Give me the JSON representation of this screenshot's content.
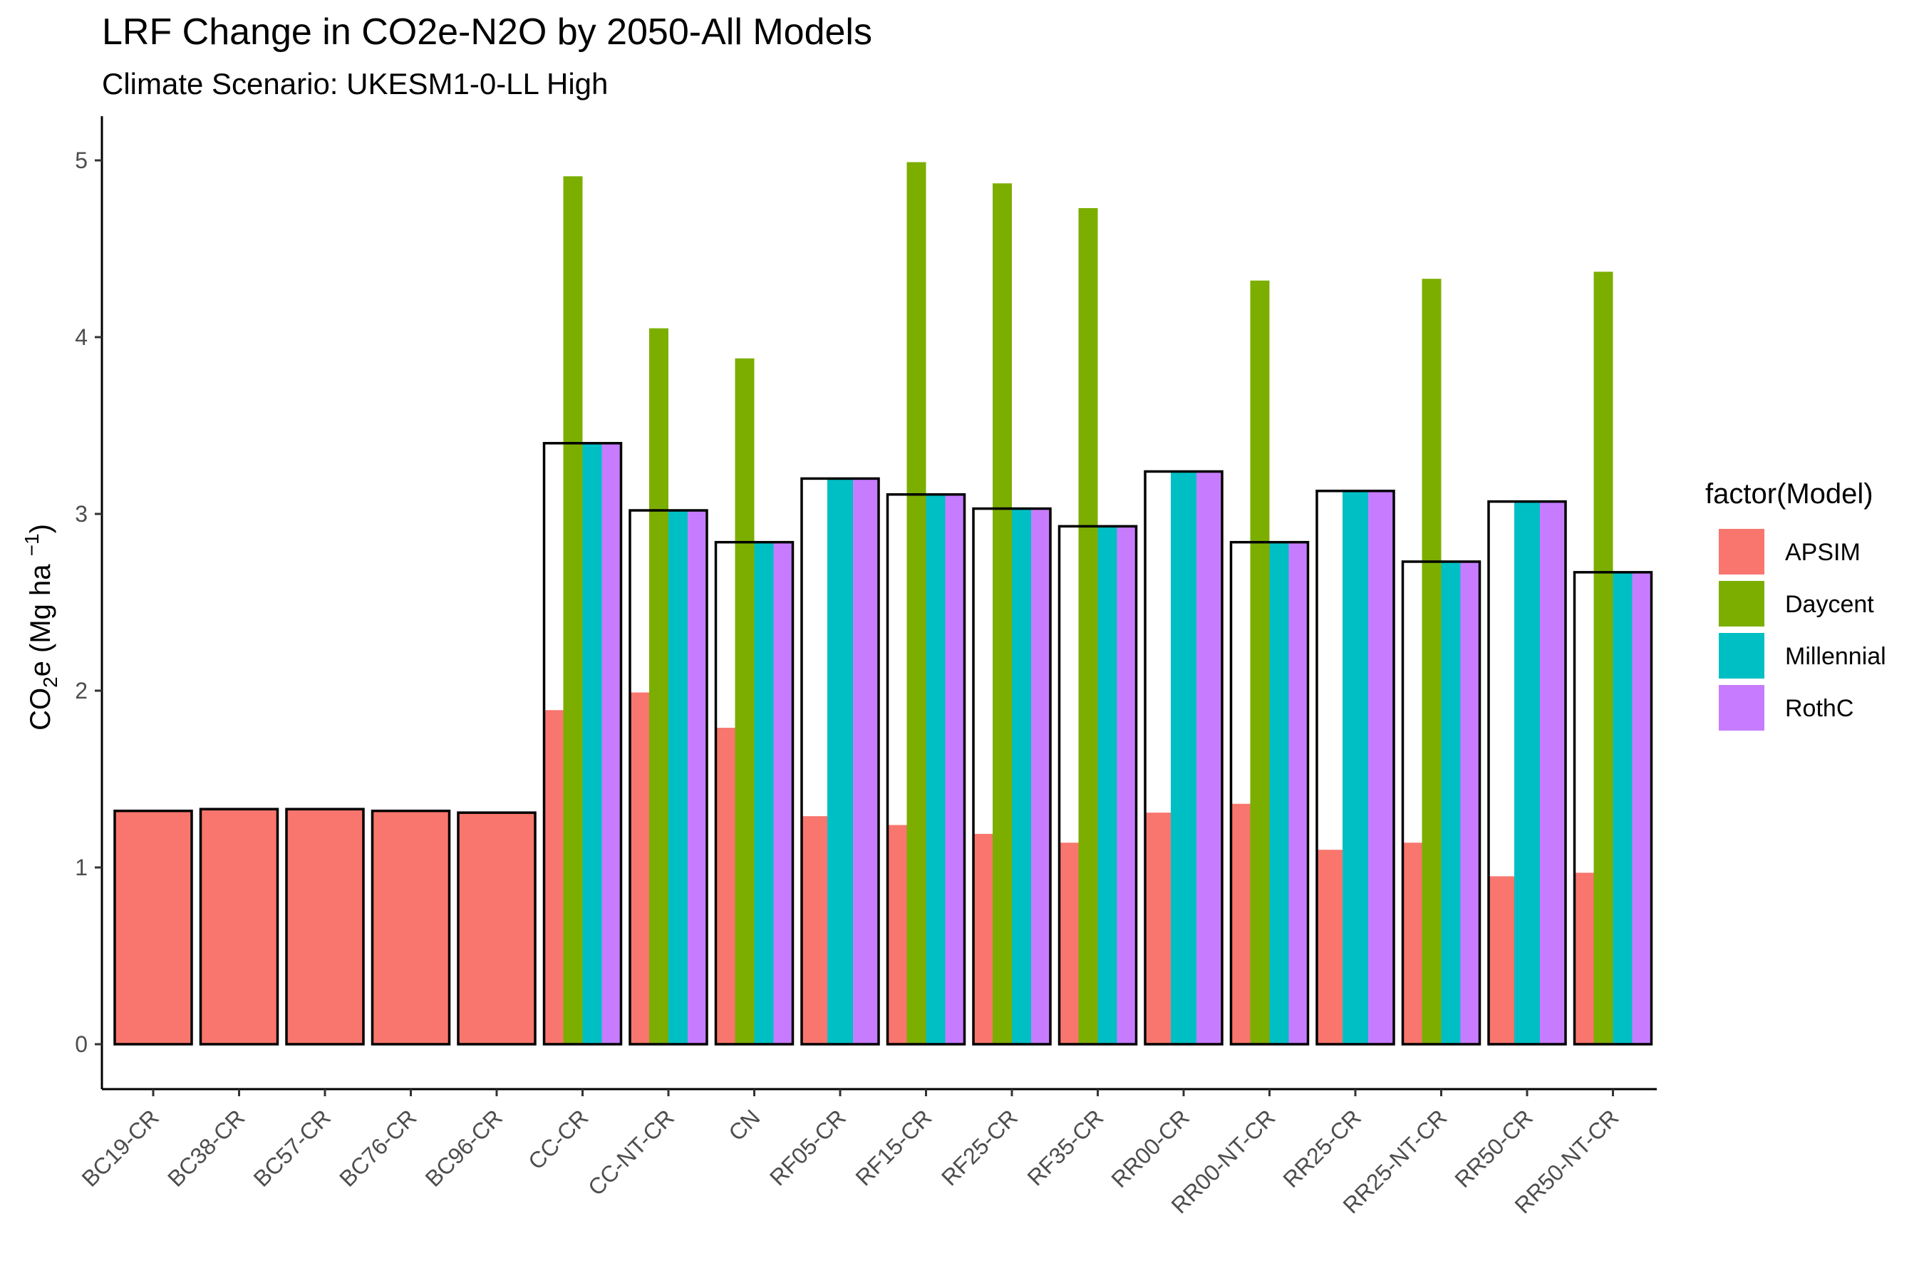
{
  "chart_data": {
    "type": "bar",
    "title": "LRF Change in CO2e-N2O by 2050-All Models",
    "subtitle": "Climate Scenario: UKESM1-0-LL High",
    "ylabel": {
      "base": "CO",
      "sub": "2",
      "mid": "e (Mg ha ",
      "sup": "−1",
      "end": ")"
    },
    "ylim": [
      0,
      5.25
    ],
    "yticks": [
      0,
      1,
      2,
      3,
      4,
      5
    ],
    "grid": false,
    "legend_position": "right",
    "legend_title": "factor(Model)",
    "categories": [
      "BC19-CR",
      "BC38-CR",
      "BC57-CR",
      "BC76-CR",
      "BC96-CR",
      "CC-CR",
      "CC-NT-CR",
      "CN",
      "RF05-CR",
      "RF15-CR",
      "RF25-CR",
      "RF35-CR",
      "RR00-CR",
      "RR00-NT-CR",
      "RR25-CR",
      "RR25-NT-CR",
      "RR50-CR",
      "RR50-NT-CR"
    ],
    "series": [
      {
        "name": "APSIM",
        "color": "#F8766D",
        "values": [
          1.32,
          1.33,
          1.33,
          1.32,
          1.31,
          1.89,
          1.99,
          1.79,
          1.29,
          1.24,
          1.19,
          1.14,
          1.31,
          1.36,
          1.1,
          1.14,
          0.95,
          0.97
        ]
      },
      {
        "name": "Daycent",
        "color": "#7CAE00",
        "values": [
          null,
          null,
          null,
          null,
          null,
          4.91,
          4.05,
          3.88,
          null,
          4.99,
          4.87,
          4.73,
          null,
          4.32,
          null,
          4.33,
          null,
          4.37
        ]
      },
      {
        "name": "Millennial",
        "color": "#00BFC4",
        "values": [
          null,
          null,
          null,
          null,
          null,
          3.4,
          3.02,
          2.84,
          3.2,
          3.11,
          3.03,
          2.93,
          3.24,
          2.84,
          3.13,
          2.73,
          3.07,
          2.67
        ]
      },
      {
        "name": "RothC",
        "color": "#C77CFF",
        "values": [
          null,
          null,
          null,
          null,
          null,
          3.4,
          3.02,
          2.84,
          3.2,
          3.11,
          3.03,
          2.93,
          3.24,
          2.84,
          3.13,
          2.73,
          3.07,
          2.67
        ]
      }
    ],
    "outline_values": [
      1.32,
      1.33,
      1.33,
      1.32,
      1.31,
      3.4,
      3.02,
      2.84,
      3.2,
      3.11,
      3.03,
      2.93,
      3.24,
      2.84,
      3.13,
      2.73,
      3.07,
      2.67
    ]
  }
}
